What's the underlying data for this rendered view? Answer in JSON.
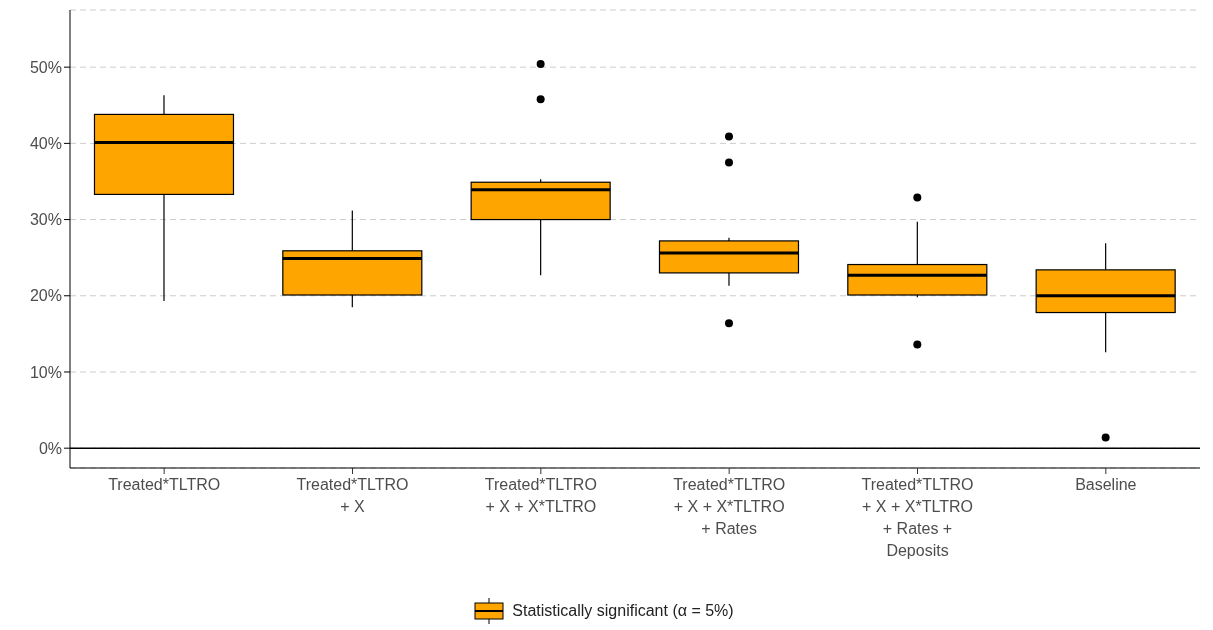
{
  "chart_data": {
    "type": "box",
    "categories": [
      "Treated*TLTRO",
      "Treated*TLTRO\n+ X",
      "Treated*TLTRO\n+ X + X*TLTRO",
      "Treated*TLTRO\n+ X + X*TLTRO\n+ Rates",
      "Treated*TLTRO\n+ X + X*TLTRO\n+ Rates +\nDeposits",
      "Baseline"
    ],
    "series": [
      {
        "name": "Statistically significant (α = 5%)",
        "color": "#ffa500",
        "boxes": [
          {
            "low": 19.3,
            "q1": 33.3,
            "median": 40.1,
            "q3": 43.8,
            "high": 46.3
          },
          {
            "low": 18.5,
            "q1": 20.1,
            "median": 24.9,
            "q3": 25.9,
            "high": 31.2
          },
          {
            "low": 22.7,
            "q1": 30.0,
            "median": 33.9,
            "q3": 34.9,
            "high": 35.3,
            "outliers": [
              50.4,
              45.8
            ]
          },
          {
            "low": 21.3,
            "q1": 23.0,
            "median": 25.6,
            "q3": 27.2,
            "high": 27.6,
            "outliers": [
              40.9,
              37.5,
              16.4
            ]
          },
          {
            "low": 19.8,
            "q1": 20.1,
            "median": 22.7,
            "q3": 24.1,
            "high": 29.7,
            "outliers": [
              32.9,
              13.6
            ]
          },
          {
            "low": 12.6,
            "q1": 17.8,
            "median": 20.0,
            "q3": 23.4,
            "high": 26.9,
            "outliers": [
              1.4
            ]
          }
        ]
      }
    ],
    "ylim": [
      -2.6,
      57.5
    ],
    "yticks": [
      {
        "value": 0,
        "label": "0%"
      },
      {
        "value": 10,
        "label": "10%"
      },
      {
        "value": 20,
        "label": "20%"
      },
      {
        "value": 30,
        "label": "30%"
      },
      {
        "value": 40,
        "label": "40%"
      },
      {
        "value": 50,
        "label": "50%"
      }
    ],
    "ref_lines": [
      {
        "axis": "y",
        "value": 0,
        "color": "#000000",
        "line_style": "solid"
      }
    ],
    "grid": "y",
    "legend": "bottom"
  }
}
